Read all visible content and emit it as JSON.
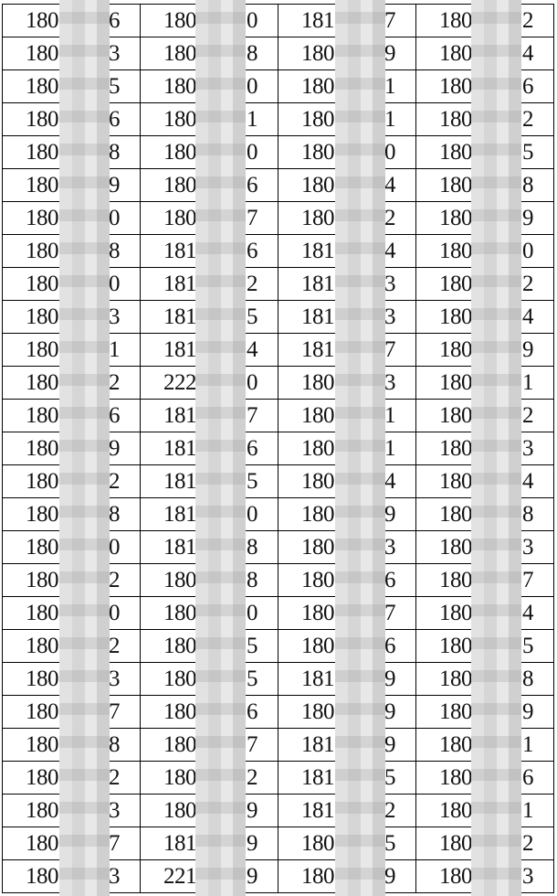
{
  "table": {
    "rows": [
      [
        [
          "180",
          "6"
        ],
        [
          "180",
          "0"
        ],
        [
          "181",
          "7"
        ],
        [
          "180",
          "2"
        ]
      ],
      [
        [
          "180",
          "3"
        ],
        [
          "180",
          "8"
        ],
        [
          "180",
          "9"
        ],
        [
          "180",
          "4"
        ]
      ],
      [
        [
          "180",
          "5"
        ],
        [
          "180",
          "0"
        ],
        [
          "180",
          "1"
        ],
        [
          "180",
          "6"
        ]
      ],
      [
        [
          "180",
          "6"
        ],
        [
          "180",
          "1"
        ],
        [
          "180",
          "1"
        ],
        [
          "180",
          "2"
        ]
      ],
      [
        [
          "180",
          "8"
        ],
        [
          "180",
          "0"
        ],
        [
          "180",
          "0"
        ],
        [
          "180",
          "5"
        ]
      ],
      [
        [
          "180",
          "9"
        ],
        [
          "180",
          "6"
        ],
        [
          "180",
          "4"
        ],
        [
          "180",
          "8"
        ]
      ],
      [
        [
          "180",
          "0"
        ],
        [
          "180",
          "7"
        ],
        [
          "180",
          "2"
        ],
        [
          "180",
          "9"
        ]
      ],
      [
        [
          "180",
          "8"
        ],
        [
          "181",
          "6"
        ],
        [
          "181",
          "4"
        ],
        [
          "180",
          "0"
        ]
      ],
      [
        [
          "180",
          "0"
        ],
        [
          "181",
          "2"
        ],
        [
          "181",
          "3"
        ],
        [
          "180",
          "2"
        ]
      ],
      [
        [
          "180",
          "3"
        ],
        [
          "181",
          "5"
        ],
        [
          "181",
          "3"
        ],
        [
          "180",
          "4"
        ]
      ],
      [
        [
          "180",
          "1"
        ],
        [
          "181",
          "4"
        ],
        [
          "181",
          "7"
        ],
        [
          "180",
          "9"
        ]
      ],
      [
        [
          "180",
          "2"
        ],
        [
          "222",
          "0"
        ],
        [
          "180",
          "3"
        ],
        [
          "180",
          "1"
        ]
      ],
      [
        [
          "180",
          "6"
        ],
        [
          "181",
          "7"
        ],
        [
          "180",
          "1"
        ],
        [
          "180",
          "2"
        ]
      ],
      [
        [
          "180",
          "9"
        ],
        [
          "181",
          "6"
        ],
        [
          "180",
          "1"
        ],
        [
          "180",
          "3"
        ]
      ],
      [
        [
          "180",
          "2"
        ],
        [
          "181",
          "5"
        ],
        [
          "180",
          "4"
        ],
        [
          "180",
          "4"
        ]
      ],
      [
        [
          "180",
          "8"
        ],
        [
          "181",
          "0"
        ],
        [
          "180",
          "9"
        ],
        [
          "180",
          "8"
        ]
      ],
      [
        [
          "180",
          "0"
        ],
        [
          "181",
          "8"
        ],
        [
          "180",
          "3"
        ],
        [
          "180",
          "3"
        ]
      ],
      [
        [
          "180",
          "2"
        ],
        [
          "180",
          "8"
        ],
        [
          "180",
          "6"
        ],
        [
          "180",
          "7"
        ]
      ],
      [
        [
          "180",
          "0"
        ],
        [
          "180",
          "0"
        ],
        [
          "180",
          "7"
        ],
        [
          "180",
          "4"
        ]
      ],
      [
        [
          "180",
          "2"
        ],
        [
          "180",
          "5"
        ],
        [
          "180",
          "6"
        ],
        [
          "180",
          "5"
        ]
      ],
      [
        [
          "180",
          "3"
        ],
        [
          "180",
          "5"
        ],
        [
          "181",
          "9"
        ],
        [
          "180",
          "8"
        ]
      ],
      [
        [
          "180",
          "7"
        ],
        [
          "180",
          "6"
        ],
        [
          "180",
          "9"
        ],
        [
          "180",
          "9"
        ]
      ],
      [
        [
          "180",
          "8"
        ],
        [
          "180",
          "7"
        ],
        [
          "181",
          "9"
        ],
        [
          "180",
          "1"
        ]
      ],
      [
        [
          "180",
          "2"
        ],
        [
          "180",
          "2"
        ],
        [
          "181",
          "5"
        ],
        [
          "180",
          "6"
        ]
      ],
      [
        [
          "180",
          "3"
        ],
        [
          "180",
          "9"
        ],
        [
          "181",
          "2"
        ],
        [
          "180",
          "1"
        ]
      ],
      [
        [
          "180",
          "7"
        ],
        [
          "181",
          "9"
        ],
        [
          "180",
          "5"
        ],
        [
          "180",
          "2"
        ]
      ],
      [
        [
          "180",
          "3"
        ],
        [
          "221",
          "9"
        ],
        [
          "180",
          "9"
        ],
        [
          "180",
          "3"
        ]
      ]
    ]
  }
}
